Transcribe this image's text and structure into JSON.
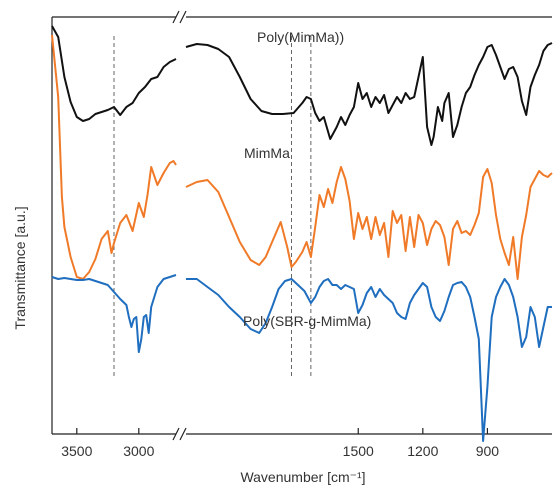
{
  "chart_data": {
    "type": "line",
    "xlabel": "Wavenumber [cm⁻¹]",
    "ylabel": "Transmittance [a.u.]",
    "x_axis": {
      "reversed": true,
      "broken": true,
      "left_segment_range": [
        3700,
        2700
      ],
      "right_segment_range": [
        2300,
        600
      ],
      "ticks": [
        3500,
        3000,
        1500,
        1200,
        900
      ],
      "tick_labels": [
        "3500",
        "3000",
        "1500",
        "1200",
        "900"
      ]
    },
    "reference_lines_cm": [
      3200,
      1810,
      1720
    ],
    "grid": false,
    "legend": "none",
    "series": [
      {
        "name": "Poly(MimMa))",
        "color": "#111111",
        "points": [
          [
            3700,
            9
          ],
          [
            3650,
            20
          ],
          [
            3600,
            60
          ],
          [
            3550,
            85
          ],
          [
            3500,
            100
          ],
          [
            3450,
            104
          ],
          [
            3400,
            102
          ],
          [
            3350,
            97
          ],
          [
            3300,
            95
          ],
          [
            3250,
            93
          ],
          [
            3200,
            90
          ],
          [
            3150,
            98
          ],
          [
            3100,
            90
          ],
          [
            3050,
            86
          ],
          [
            3000,
            76
          ],
          [
            2950,
            70
          ],
          [
            2900,
            62
          ],
          [
            2850,
            60
          ],
          [
            2800,
            50
          ],
          [
            2750,
            45
          ],
          [
            2700,
            42
          ],
          [
            2300,
            30
          ],
          [
            2250,
            27
          ],
          [
            2200,
            28
          ],
          [
            2150,
            32
          ],
          [
            2100,
            40
          ],
          [
            2050,
            60
          ],
          [
            2000,
            82
          ],
          [
            1950,
            94
          ],
          [
            1900,
            97
          ],
          [
            1850,
            97
          ],
          [
            1800,
            96
          ],
          [
            1760,
            86
          ],
          [
            1740,
            80
          ],
          [
            1720,
            82
          ],
          [
            1700,
            96
          ],
          [
            1680,
            104
          ],
          [
            1660,
            100
          ],
          [
            1630,
            122
          ],
          [
            1600,
            110
          ],
          [
            1580,
            100
          ],
          [
            1560,
            108
          ],
          [
            1540,
            98
          ],
          [
            1520,
            90
          ],
          [
            1500,
            66
          ],
          [
            1480,
            82
          ],
          [
            1460,
            76
          ],
          [
            1440,
            90
          ],
          [
            1420,
            80
          ],
          [
            1400,
            86
          ],
          [
            1380,
            78
          ],
          [
            1360,
            96
          ],
          [
            1340,
            88
          ],
          [
            1320,
            80
          ],
          [
            1300,
            86
          ],
          [
            1280,
            76
          ],
          [
            1260,
            82
          ],
          [
            1240,
            80
          ],
          [
            1220,
            60
          ],
          [
            1200,
            40
          ],
          [
            1180,
            110
          ],
          [
            1160,
            128
          ],
          [
            1150,
            120
          ],
          [
            1130,
            90
          ],
          [
            1110,
            104
          ],
          [
            1100,
            86
          ],
          [
            1080,
            76
          ],
          [
            1060,
            120
          ],
          [
            1040,
            108
          ],
          [
            1020,
            90
          ],
          [
            1000,
            76
          ],
          [
            980,
            70
          ],
          [
            960,
            58
          ],
          [
            940,
            48
          ],
          [
            920,
            40
          ],
          [
            900,
            30
          ],
          [
            880,
            28
          ],
          [
            860,
            38
          ],
          [
            840,
            50
          ],
          [
            820,
            62
          ],
          [
            800,
            52
          ],
          [
            780,
            50
          ],
          [
            760,
            60
          ],
          [
            740,
            84
          ],
          [
            720,
            98
          ],
          [
            700,
            70
          ],
          [
            680,
            58
          ],
          [
            660,
            48
          ],
          [
            640,
            34
          ],
          [
            620,
            28
          ],
          [
            600,
            26
          ]
        ]
      },
      {
        "name": "MimMa",
        "color": "#F07A28",
        "points": [
          [
            3700,
            18
          ],
          [
            3650,
            80
          ],
          [
            3620,
            180
          ],
          [
            3600,
            210
          ],
          [
            3550,
            240
          ],
          [
            3500,
            260
          ],
          [
            3450,
            262
          ],
          [
            3400,
            255
          ],
          [
            3350,
            242
          ],
          [
            3300,
            222
          ],
          [
            3250,
            214
          ],
          [
            3220,
            236
          ],
          [
            3200,
            226
          ],
          [
            3150,
            206
          ],
          [
            3100,
            198
          ],
          [
            3050,
            214
          ],
          [
            3000,
            186
          ],
          [
            2960,
            200
          ],
          [
            2930,
            178
          ],
          [
            2900,
            150
          ],
          [
            2850,
            168
          ],
          [
            2800,
            156
          ],
          [
            2750,
            146
          ],
          [
            2720,
            144
          ],
          [
            2700,
            148
          ],
          [
            2300,
            170
          ],
          [
            2250,
            165
          ],
          [
            2200,
            163
          ],
          [
            2150,
            175
          ],
          [
            2100,
            200
          ],
          [
            2050,
            225
          ],
          [
            2000,
            243
          ],
          [
            1960,
            248
          ],
          [
            1930,
            240
          ],
          [
            1900,
            225
          ],
          [
            1860,
            205
          ],
          [
            1830,
            230
          ],
          [
            1810,
            250
          ],
          [
            1790,
            245
          ],
          [
            1760,
            235
          ],
          [
            1740,
            225
          ],
          [
            1720,
            240
          ],
          [
            1700,
            210
          ],
          [
            1680,
            178
          ],
          [
            1660,
            190
          ],
          [
            1640,
            172
          ],
          [
            1620,
            186
          ],
          [
            1600,
            165
          ],
          [
            1580,
            150
          ],
          [
            1560,
            162
          ],
          [
            1540,
            184
          ],
          [
            1520,
            222
          ],
          [
            1500,
            196
          ],
          [
            1480,
            212
          ],
          [
            1460,
            200
          ],
          [
            1440,
            222
          ],
          [
            1420,
            200
          ],
          [
            1400,
            218
          ],
          [
            1380,
            206
          ],
          [
            1360,
            240
          ],
          [
            1340,
            194
          ],
          [
            1320,
            206
          ],
          [
            1300,
            198
          ],
          [
            1280,
            234
          ],
          [
            1260,
            200
          ],
          [
            1240,
            230
          ],
          [
            1220,
            198
          ],
          [
            1200,
            206
          ],
          [
            1180,
            228
          ],
          [
            1160,
            212
          ],
          [
            1140,
            204
          ],
          [
            1120,
            208
          ],
          [
            1100,
            220
          ],
          [
            1080,
            248
          ],
          [
            1060,
            212
          ],
          [
            1040,
            204
          ],
          [
            1020,
            216
          ],
          [
            1000,
            214
          ],
          [
            980,
            218
          ],
          [
            960,
            208
          ],
          [
            940,
            196
          ],
          [
            920,
            160
          ],
          [
            900,
            152
          ],
          [
            880,
            166
          ],
          [
            860,
            198
          ],
          [
            840,
            222
          ],
          [
            820,
            236
          ],
          [
            800,
            248
          ],
          [
            780,
            220
          ],
          [
            760,
            262
          ],
          [
            740,
            220
          ],
          [
            720,
            198
          ],
          [
            700,
            170
          ],
          [
            680,
            162
          ],
          [
            660,
            154
          ],
          [
            640,
            158
          ],
          [
            620,
            160
          ],
          [
            600,
            156
          ]
        ]
      },
      {
        "name": "Poly(SBR-g-MimMa)",
        "color": "#1F6EBF",
        "points": [
          [
            3700,
            260
          ],
          [
            3650,
            262
          ],
          [
            3600,
            261
          ],
          [
            3550,
            262
          ],
          [
            3500,
            263
          ],
          [
            3450,
            263
          ],
          [
            3400,
            262
          ],
          [
            3350,
            264
          ],
          [
            3300,
            266
          ],
          [
            3250,
            268
          ],
          [
            3200,
            275
          ],
          [
            3150,
            282
          ],
          [
            3100,
            288
          ],
          [
            3080,
            300
          ],
          [
            3060,
            310
          ],
          [
            3040,
            302
          ],
          [
            3020,
            300
          ],
          [
            3000,
            335
          ],
          [
            2980,
            322
          ],
          [
            2960,
            300
          ],
          [
            2940,
            298
          ],
          [
            2920,
            316
          ],
          [
            2900,
            290
          ],
          [
            2850,
            270
          ],
          [
            2800,
            262
          ],
          [
            2750,
            260
          ],
          [
            2700,
            258
          ],
          [
            2300,
            262
          ],
          [
            2250,
            262
          ],
          [
            2200,
            270
          ],
          [
            2150,
            278
          ],
          [
            2100,
            290
          ],
          [
            2050,
            300
          ],
          [
            2000,
            312
          ],
          [
            1960,
            316
          ],
          [
            1930,
            306
          ],
          [
            1900,
            290
          ],
          [
            1870,
            272
          ],
          [
            1840,
            264
          ],
          [
            1810,
            262
          ],
          [
            1780,
            268
          ],
          [
            1750,
            274
          ],
          [
            1720,
            286
          ],
          [
            1700,
            280
          ],
          [
            1680,
            270
          ],
          [
            1660,
            264
          ],
          [
            1640,
            262
          ],
          [
            1620,
            268
          ],
          [
            1600,
            268
          ],
          [
            1580,
            272
          ],
          [
            1560,
            268
          ],
          [
            1540,
            270
          ],
          [
            1520,
            272
          ],
          [
            1500,
            296
          ],
          [
            1480,
            288
          ],
          [
            1460,
            276
          ],
          [
            1440,
            270
          ],
          [
            1420,
            280
          ],
          [
            1400,
            272
          ],
          [
            1380,
            278
          ],
          [
            1360,
            282
          ],
          [
            1340,
            286
          ],
          [
            1320,
            296
          ],
          [
            1300,
            300
          ],
          [
            1280,
            302
          ],
          [
            1260,
            286
          ],
          [
            1240,
            278
          ],
          [
            1220,
            272
          ],
          [
            1200,
            266
          ],
          [
            1180,
            270
          ],
          [
            1160,
            290
          ],
          [
            1140,
            300
          ],
          [
            1120,
            304
          ],
          [
            1100,
            294
          ],
          [
            1080,
            280
          ],
          [
            1060,
            268
          ],
          [
            1040,
            266
          ],
          [
            1020,
            265
          ],
          [
            1000,
            270
          ],
          [
            980,
            280
          ],
          [
            960,
            300
          ],
          [
            940,
            322
          ],
          [
            920,
            424
          ],
          [
            900,
            370
          ],
          [
            880,
            300
          ],
          [
            860,
            280
          ],
          [
            840,
            270
          ],
          [
            820,
            262
          ],
          [
            800,
            268
          ],
          [
            780,
            280
          ],
          [
            760,
            300
          ],
          [
            740,
            330
          ],
          [
            720,
            320
          ],
          [
            700,
            290
          ],
          [
            680,
            300
          ],
          [
            660,
            330
          ],
          [
            640,
            310
          ],
          [
            620,
            290
          ],
          [
            600,
            290
          ]
        ]
      }
    ]
  }
}
